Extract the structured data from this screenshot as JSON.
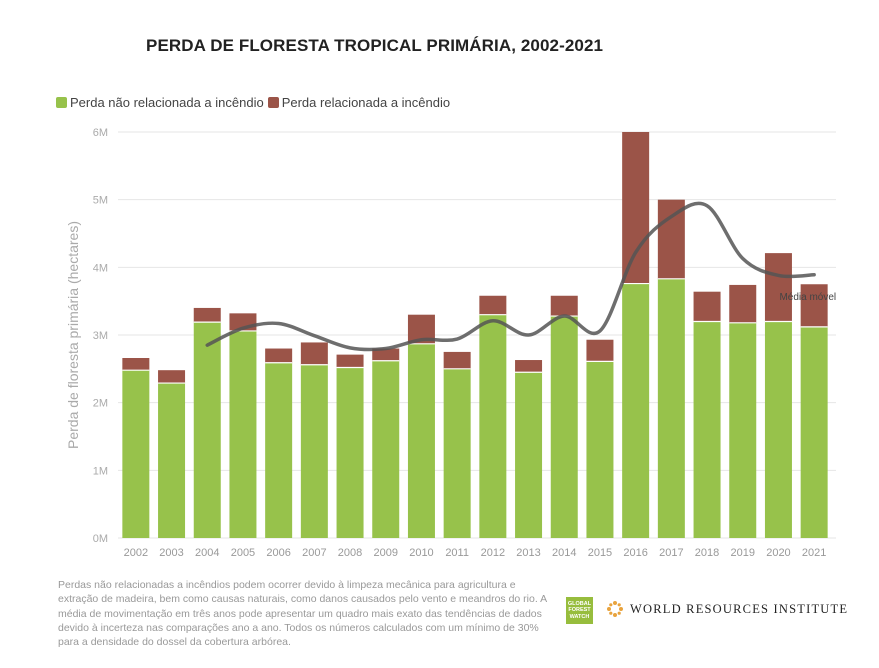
{
  "colors": {
    "non_fire": "#97c24b",
    "fire": "#9b5448",
    "moving_avg": "#555555",
    "grid": "#e6e6e6",
    "axis_text": "#aaaaaa"
  },
  "logos": {
    "gfw_text": "GLOBAL FOREST WATCH",
    "wri_text": "WORLD RESOURCES INSTITUTE"
  },
  "footnote": "Perdas não relacionadas a incêndios podem ocorrer devido à limpeza mecânica para agricultura e extração de madeira, bem como causas naturais, como danos causados pelo vento e meandros do rio. A média de movimentação em três anos pode apresentar um quadro mais exato das tendências de dados devido à incerteza nas comparações ano a ano. Todos os números calculados com um mínimo de 30% para a densidade do dossel da cobertura arbórea.",
  "chart_data": {
    "type": "bar",
    "stacked": true,
    "title": "PERDA DE FLORESTA TROPICAL PRIMÁRIA, 2002-2021",
    "ylabel": "Perda de floresta primária (hectares)",
    "xlabel": "",
    "ylim": [
      0,
      6000000
    ],
    "yticks": [
      0,
      1000000,
      2000000,
      3000000,
      4000000,
      5000000,
      6000000
    ],
    "ytick_labels": [
      "0M",
      "1M",
      "2M",
      "3M",
      "4M",
      "5M",
      "6M"
    ],
    "grid": true,
    "legend_position": "top-left",
    "categories": [
      "2002",
      "2003",
      "2004",
      "2005",
      "2006",
      "2007",
      "2008",
      "2009",
      "2010",
      "2011",
      "2012",
      "2013",
      "2014",
      "2015",
      "2016",
      "2017",
      "2018",
      "2019",
      "2020",
      "2021"
    ],
    "series": [
      {
        "name": "Perda não relacionada a incêndio",
        "values": [
          2480000,
          2290000,
          3190000,
          3060000,
          2590000,
          2560000,
          2520000,
          2620000,
          2870000,
          2500000,
          3300000,
          2450000,
          3280000,
          2610000,
          3760000,
          3830000,
          3200000,
          3180000,
          3200000,
          3120000
        ]
      },
      {
        "name": "Perda relacionada a incêndio",
        "values": [
          180000,
          190000,
          210000,
          260000,
          210000,
          330000,
          190000,
          180000,
          430000,
          250000,
          280000,
          180000,
          300000,
          320000,
          2240000,
          1170000,
          440000,
          560000,
          1010000,
          630000
        ]
      }
    ],
    "moving_average": {
      "label": "Média móvel",
      "x": [
        "2004",
        "2005",
        "2006",
        "2007",
        "2008",
        "2009",
        "2010",
        "2011",
        "2012",
        "2013",
        "2014",
        "2015",
        "2016",
        "2017",
        "2018",
        "2019",
        "2020",
        "2021"
      ],
      "values": [
        2850000,
        3100000,
        3170000,
        2990000,
        2810000,
        2800000,
        2930000,
        2940000,
        3210000,
        3000000,
        3280000,
        3060000,
        4220000,
        4750000,
        4910000,
        4130000,
        3880000,
        3890000
      ]
    }
  }
}
